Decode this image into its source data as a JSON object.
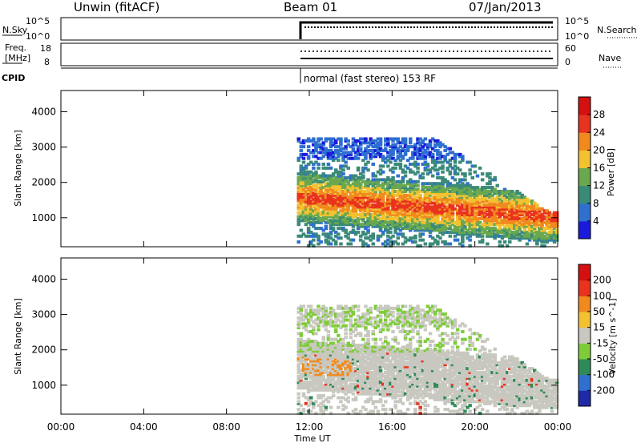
{
  "header": {
    "station": "Unwin (fitACF)",
    "beam": "Beam 01",
    "date": "07/Jan/2013"
  },
  "nsky_panel": {
    "left_label": "N.Sky",
    "left_ticks": [
      "10^5",
      "10^0"
    ],
    "right_label": "N.Search",
    "right_ticks": [
      "10^5",
      "10^0"
    ]
  },
  "freq_panel": {
    "left_label_line1": "Freq.",
    "left_label_line2": "[MHz]",
    "left_ticks": [
      "18",
      "8"
    ],
    "right_label": "Nave",
    "right_ticks": [
      "60",
      "0"
    ]
  },
  "cpid_panel": {
    "label": "CPID",
    "mode_text": "normal (fast stereo) 153 RF"
  },
  "x_axis": {
    "label": "Time UT",
    "ticks": [
      "00:00",
      "04:00",
      "08:00",
      "12:00",
      "16:00",
      "20:00",
      "00:00"
    ]
  },
  "chart_data": [
    {
      "type": "heatmap",
      "title": "",
      "xlabel": "",
      "ylabel": "Slant Range [km]",
      "y_ticks": [
        "1000",
        "2000",
        "3000",
        "4000"
      ],
      "ylim": [
        180,
        4600
      ],
      "xlim_hours": [
        0,
        24
      ],
      "data_start_hour": 11.4,
      "colorbar": {
        "label": "Power [dB]",
        "ticks": [
          "4",
          "8",
          "12",
          "16",
          "20",
          "24",
          "28"
        ],
        "colors": [
          "#1a1adc",
          "#2f6fd0",
          "#3a8a78",
          "#6aa84f",
          "#f2c230",
          "#f08a1e",
          "#e8331e",
          "#d41010"
        ]
      }
    },
    {
      "type": "heatmap",
      "title": "",
      "xlabel": "Time UT",
      "ylabel": "Slant Range [km]",
      "y_ticks": [
        "1000",
        "2000",
        "3000",
        "4000"
      ],
      "ylim": [
        180,
        4600
      ],
      "xlim_hours": [
        0,
        24
      ],
      "data_start_hour": 11.4,
      "colorbar": {
        "label": "Velocity [m s^-1]",
        "ticks": [
          "200",
          "100",
          "50",
          "15",
          "-15",
          "-50",
          "-100",
          "-200"
        ],
        "colors": [
          "#1f2aa8",
          "#2f6fd0",
          "#2e8b57",
          "#7fcc3a",
          "#c8c8c0",
          "#f2c230",
          "#f08a1e",
          "#e8331e",
          "#d41010"
        ]
      }
    }
  ]
}
